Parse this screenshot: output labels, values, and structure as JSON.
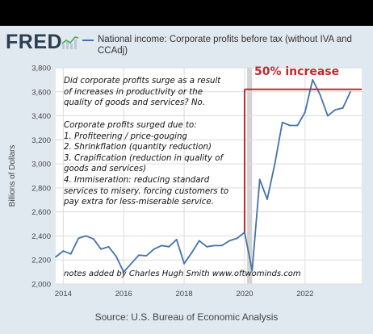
{
  "header": {
    "logo": "FRED",
    "logo_icon": "fred-chart-icon",
    "series_name": "National income: Corporate profits before tax (without IVA and CCAdj)"
  },
  "colors": {
    "line": "#4572a7",
    "annotation": "#c0272d",
    "recession": "#c8c8c8",
    "background": "#e1e9f0",
    "plot": "#ffffff"
  },
  "chart_data": {
    "type": "line",
    "ylabel": "Billions of Dollars",
    "ylim": [
      2000,
      3800
    ],
    "yticks": [
      2000,
      2200,
      2400,
      2600,
      2800,
      3000,
      3200,
      3400,
      3600,
      3800
    ],
    "ytick_labels": [
      "2,000",
      "2,200",
      "2,400",
      "2,600",
      "2,800",
      "3,000",
      "3,200",
      "3,400",
      "3,600",
      "3,800"
    ],
    "xlim": [
      2013.75,
      2023.875
    ],
    "xticks": [
      2014,
      2016,
      2018,
      2020,
      2022
    ],
    "xtick_labels": [
      "2014",
      "2016",
      "2018",
      "2020",
      "2022"
    ],
    "grid": true,
    "recession": {
      "start": "2020-02",
      "end": "2020-04"
    },
    "series": [
      {
        "x": [
          "2013-10",
          "2014-01",
          "2014-04",
          "2014-07",
          "2014-10",
          "2015-01",
          "2015-04",
          "2015-07",
          "2015-10",
          "2016-01",
          "2016-04",
          "2016-07",
          "2016-10",
          "2017-01",
          "2017-04",
          "2017-07",
          "2017-10",
          "2018-01",
          "2018-04",
          "2018-07",
          "2018-10",
          "2019-01",
          "2019-04",
          "2019-07",
          "2019-10",
          "2020-01",
          "2020-04",
          "2020-07",
          "2020-10",
          "2021-01",
          "2021-04",
          "2021-07",
          "2021-10",
          "2022-01",
          "2022-04",
          "2022-07",
          "2022-10",
          "2023-01",
          "2023-04",
          "2023-07"
        ],
        "values": [
          2225,
          2275,
          2250,
          2380,
          2400,
          2375,
          2290,
          2310,
          2230,
          2100,
          2170,
          2240,
          2235,
          2290,
          2320,
          2310,
          2370,
          2170,
          2260,
          2360,
          2310,
          2320,
          2320,
          2360,
          2380,
          2430,
          2110,
          2870,
          2705,
          3000,
          3345,
          3320,
          3320,
          3430,
          3700,
          3575,
          3400,
          3450,
          3465,
          3600
        ]
      }
    ],
    "annotations": {
      "question": "Did corporate profits surge as a result of increases in productivity or the quality of goods and services? No.",
      "list": [
        "Corporate profits surged due to:",
        "1. Profiteering / price-gouging",
        "2. Shrinkflation (quantity reduction)",
        "3. Crapification (reduction in quality of goods and services)",
        "4. Immiseration: reducing standard services to misery. forcing customers to pay extra for less-miserable service."
      ],
      "credit": "notes added by Charles Hugh Smith  www.oftwominds.com",
      "increase": "50% increase"
    }
  },
  "source": "Source: U.S. Bureau of Economic Analysis"
}
